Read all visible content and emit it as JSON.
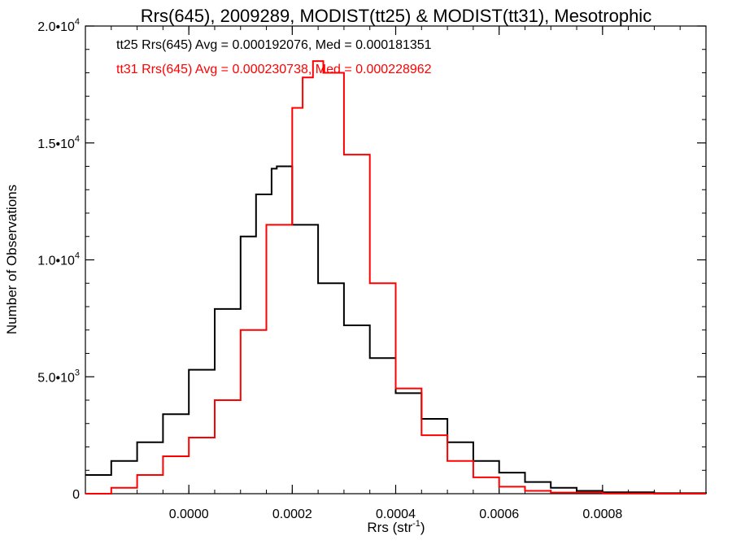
{
  "chart_data": {
    "type": "line",
    "step": true,
    "title": "Rrs(645), 2009289, MODIST(tt25) & MODIST(tt31), Mesotrophic",
    "xlabel_base": "Rrs (str",
    "xlabel_sup": "-1",
    "xlabel_close": ")",
    "ylabel": "Number of Observations",
    "xlim": [
      -0.0002,
      0.001
    ],
    "ylim": [
      0,
      20000
    ],
    "grid": false,
    "x_ticks": [
      {
        "value": 0.0,
        "label": "0.0000"
      },
      {
        "value": 0.0002,
        "label": "0.0002"
      },
      {
        "value": 0.0004,
        "label": "0.0004"
      },
      {
        "value": 0.0006,
        "label": "0.0006"
      },
      {
        "value": 0.0008,
        "label": "0.0008"
      }
    ],
    "y_ticks": [
      {
        "value": 0,
        "base": "0",
        "sup": ""
      },
      {
        "value": 5000,
        "base": "5.0•10",
        "sup": "3"
      },
      {
        "value": 10000,
        "base": "1.0•10",
        "sup": "4"
      },
      {
        "value": 15000,
        "base": "1.5•10",
        "sup": "4"
      },
      {
        "value": 20000,
        "base": "2.0•10",
        "sup": "4"
      }
    ],
    "annotations": [
      {
        "text": "tt25 Rrs(645) Avg = 0.000192076, Med = 0.000181351",
        "color": "#000000"
      },
      {
        "text": "tt31 Rrs(645) Avg = 0.000230738, Med = 0.000228962",
        "color": "#ff0000"
      }
    ],
    "series": [
      {
        "color": "#000000",
        "x": [
          -0.0002,
          -0.00015,
          -0.0001,
          -5e-05,
          0.0,
          5e-05,
          0.0001,
          0.00013,
          0.00016,
          0.00017,
          0.0002,
          0.00025,
          0.0003,
          0.00035,
          0.0004,
          0.00045,
          0.0005,
          0.00055,
          0.0006,
          0.00065,
          0.0007,
          0.00075,
          0.0008,
          0.0009,
          0.001
        ],
        "y": [
          800,
          1400,
          2200,
          3400,
          5300,
          7900,
          11000,
          12800,
          13900,
          14000,
          11500,
          9000,
          7200,
          5800,
          4300,
          3200,
          2200,
          1400,
          900,
          500,
          250,
          120,
          60,
          20,
          0
        ]
      },
      {
        "color": "#ff0000",
        "x": [
          -0.0002,
          -0.00015,
          -0.0001,
          -5e-05,
          0.0,
          5e-05,
          0.0001,
          0.00015,
          0.0002,
          0.00022,
          0.00024,
          0.00026,
          0.0003,
          0.00035,
          0.0004,
          0.00045,
          0.0005,
          0.00055,
          0.0006,
          0.00065,
          0.0007,
          0.0008,
          0.0009,
          0.001
        ],
        "y": [
          0,
          250,
          800,
          1600,
          2400,
          4000,
          7000,
          11500,
          16500,
          17800,
          18500,
          18000,
          14500,
          9000,
          4500,
          2500,
          1400,
          700,
          300,
          120,
          50,
          10,
          0,
          0
        ]
      }
    ]
  }
}
